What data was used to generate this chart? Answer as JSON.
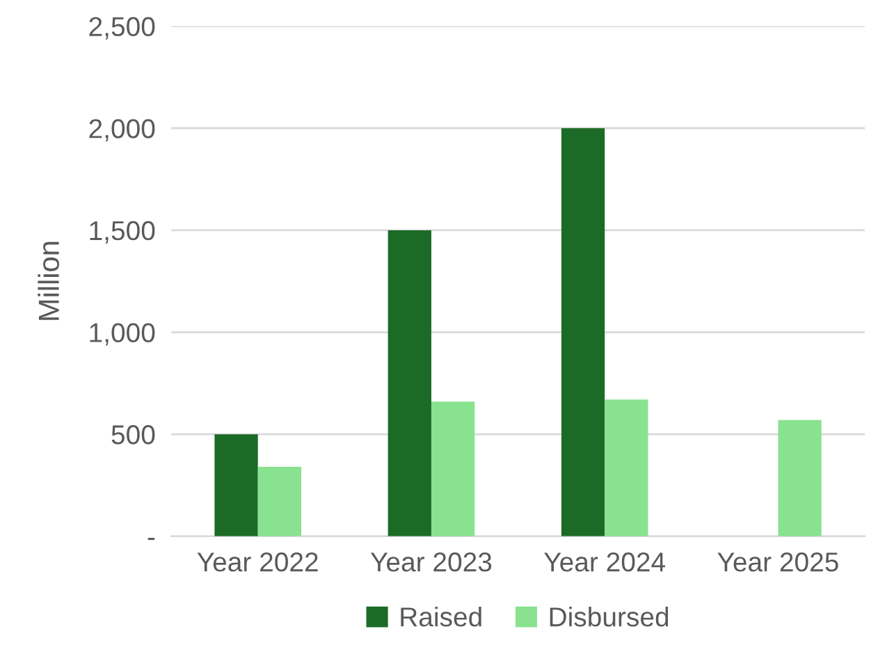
{
  "chart_data": {
    "type": "bar",
    "ylabel": "Million",
    "categories": [
      "Year 2022",
      "Year 2023",
      "Year 2024",
      "Year 2025"
    ],
    "series": [
      {
        "name": "Raised",
        "color": "#1b6b27",
        "values": [
          500,
          1500,
          2000,
          null
        ]
      },
      {
        "name": "Disbursed",
        "color": "#88e28f",
        "values": [
          340,
          660,
          670,
          570
        ]
      }
    ],
    "ylim": [
      0,
      2500
    ],
    "yticks": [
      {
        "value": 0,
        "label": "-"
      },
      {
        "value": 500,
        "label": "500"
      },
      {
        "value": 1000,
        "label": "1,000"
      },
      {
        "value": 1500,
        "label": "1,500"
      },
      {
        "value": 2000,
        "label": "2,000"
      },
      {
        "value": 2500,
        "label": "2,500"
      }
    ],
    "grid": "y",
    "legend": "bottom"
  }
}
